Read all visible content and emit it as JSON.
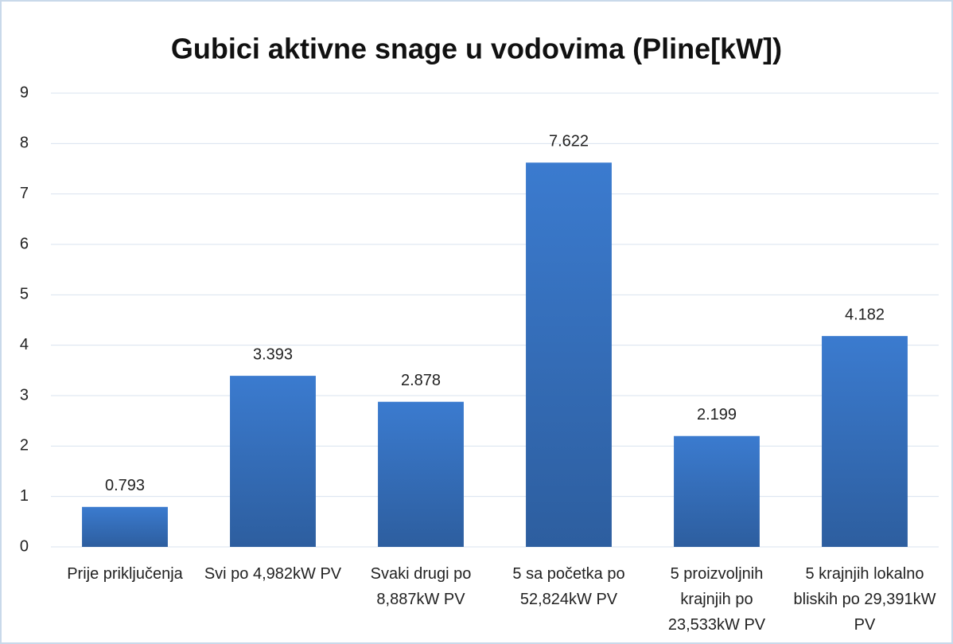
{
  "chart_data": {
    "type": "bar",
    "title": "Gubici aktivne snage u vodovima (Pline[kW])",
    "categories": [
      "Prije priključenja",
      "Svi po 4,982kW PV",
      "Svaki drugi po 8,887kW PV",
      "5 sa početka po 52,824kW PV",
      "5 proizvoljnih krajnjih po 23,533kW PV",
      "5 krajnjih lokalno bliskih po 29,391kW PV"
    ],
    "values": [
      0.793,
      3.393,
      2.878,
      7.622,
      2.199,
      4.182
    ],
    "color": "#3b7bcf",
    "ylim": [
      0,
      9
    ],
    "yticks": [
      0,
      1,
      2,
      3,
      4,
      5,
      6,
      7,
      8,
      9
    ],
    "grid": true
  }
}
